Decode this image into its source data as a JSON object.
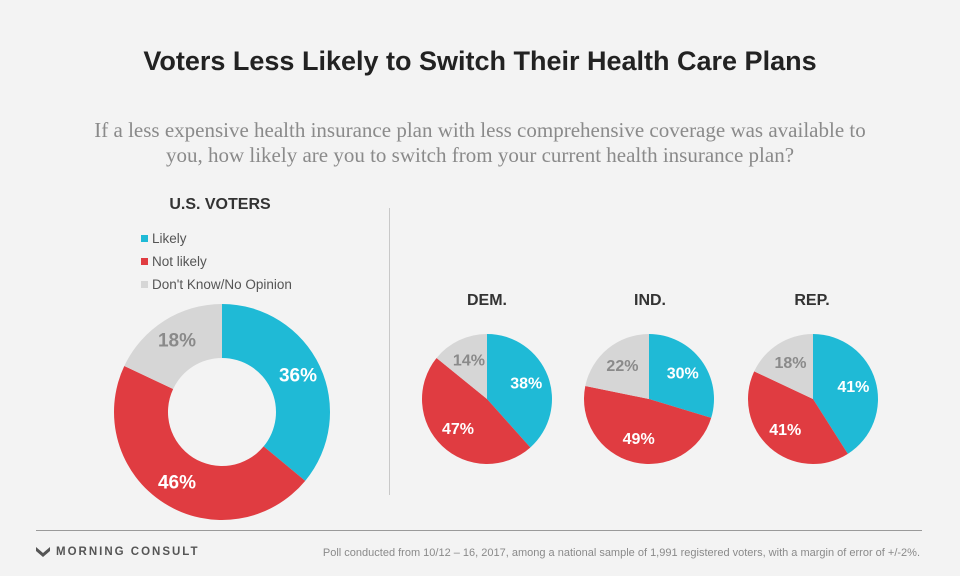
{
  "title": "Voters Less Likely to Switch Their Health Care Plans",
  "subtitle": "If a less expensive health insurance plan with less comprehensive coverage was available to you, how likely are you to switch from your current health insurance plan?",
  "colors": {
    "likely": "#1fbad6",
    "not_likely": "#e03c41",
    "dont_know": "#d6d6d6"
  },
  "legend": [
    {
      "label": "Likely",
      "color": "#1fbad6"
    },
    {
      "label": "Not likely",
      "color": "#e03c41"
    },
    {
      "label": "Don't Know/No Opinion",
      "color": "#d6d6d6"
    }
  ],
  "chart_data": [
    {
      "type": "pie",
      "style": "donut",
      "title": "U.S. VOTERS",
      "categories": [
        "Likely",
        "Not likely",
        "Don't Know/No Opinion"
      ],
      "values": [
        36,
        46,
        18
      ],
      "labels": [
        "36%",
        "46%",
        "18%"
      ]
    },
    {
      "type": "pie",
      "title": "DEM.",
      "categories": [
        "Likely",
        "Not likely",
        "Don't Know/No Opinion"
      ],
      "values": [
        38,
        47,
        14
      ],
      "labels": [
        "38%",
        "47%",
        "14%"
      ]
    },
    {
      "type": "pie",
      "title": "IND.",
      "categories": [
        "Likely",
        "Not likely",
        "Don't Know/No Opinion"
      ],
      "values": [
        30,
        49,
        22
      ],
      "labels": [
        "30%",
        "49%",
        "22%"
      ]
    },
    {
      "type": "pie",
      "title": "REP.",
      "categories": [
        "Likely",
        "Not likely",
        "Don't Know/No Opinion"
      ],
      "values": [
        41,
        41,
        18
      ],
      "labels": [
        "41%",
        "41%",
        "18%"
      ]
    }
  ],
  "footer": {
    "brand": "MORNING CONSULT",
    "note": "Poll conducted from 10/12 – 16, 2017, among a national sample of 1,991 registered voters, with a margin of error of +/-2%."
  }
}
